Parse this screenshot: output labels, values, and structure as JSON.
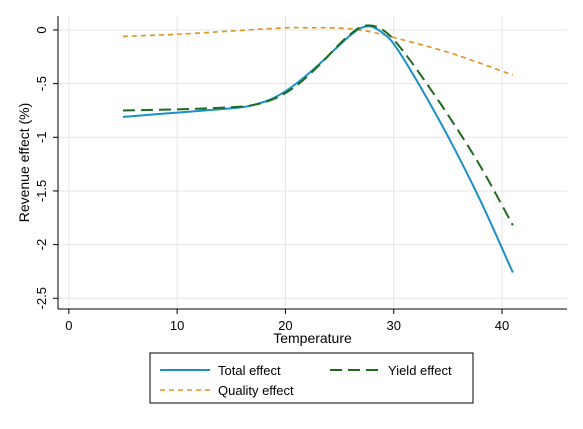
{
  "chart_data": {
    "type": "line",
    "title": "",
    "xlabel": "Temperature",
    "ylabel": "Revenue effect (%)",
    "xlim": [
      -1,
      46
    ],
    "ylim": [
      -2.6,
      0.13
    ],
    "xticks": [
      0,
      10,
      20,
      30,
      40
    ],
    "xtick_labels": [
      "0",
      "10",
      "20",
      "30",
      "40"
    ],
    "yticks": [
      0,
      -0.5,
      -1,
      -1.5,
      -2,
      -2.5
    ],
    "ytick_labels": [
      "0",
      "-.5",
      "-1",
      "-1.5",
      "-2",
      "-2.5"
    ],
    "grid": true,
    "legend_position": "bottom",
    "series": [
      {
        "name": "Total effect",
        "color": "#1a8fc9",
        "dash": "solid",
        "x": [
          5,
          10,
          15,
          17,
          19,
          21,
          23,
          25,
          26,
          27,
          28,
          29,
          30,
          32,
          35,
          38,
          41
        ],
        "y": [
          -0.81,
          -0.77,
          -0.73,
          -0.7,
          -0.63,
          -0.5,
          -0.33,
          -0.14,
          -0.05,
          0.02,
          0.03,
          -0.03,
          -0.13,
          -0.45,
          -0.99,
          -1.59,
          -2.26
        ]
      },
      {
        "name": "Yield effect",
        "color": "#1e6b1e",
        "dash": "long",
        "x": [
          5,
          10,
          15,
          17,
          19,
          21,
          23,
          25,
          26,
          27,
          28,
          29,
          30,
          32,
          35,
          38,
          41
        ],
        "y": [
          -0.75,
          -0.74,
          -0.72,
          -0.7,
          -0.64,
          -0.52,
          -0.34,
          -0.13,
          -0.04,
          0.03,
          0.04,
          0.0,
          -0.09,
          -0.35,
          -0.79,
          -1.27,
          -1.82
        ]
      },
      {
        "name": "Quality effect",
        "color": "#e3901f",
        "dash": "short",
        "x": [
          5,
          10,
          15,
          20,
          22,
          24,
          26,
          28,
          30,
          33,
          36,
          41
        ],
        "y": [
          -0.06,
          -0.04,
          -0.01,
          0.02,
          0.02,
          0.02,
          0.01,
          -0.02,
          -0.07,
          -0.15,
          -0.24,
          -0.42
        ]
      }
    ]
  }
}
